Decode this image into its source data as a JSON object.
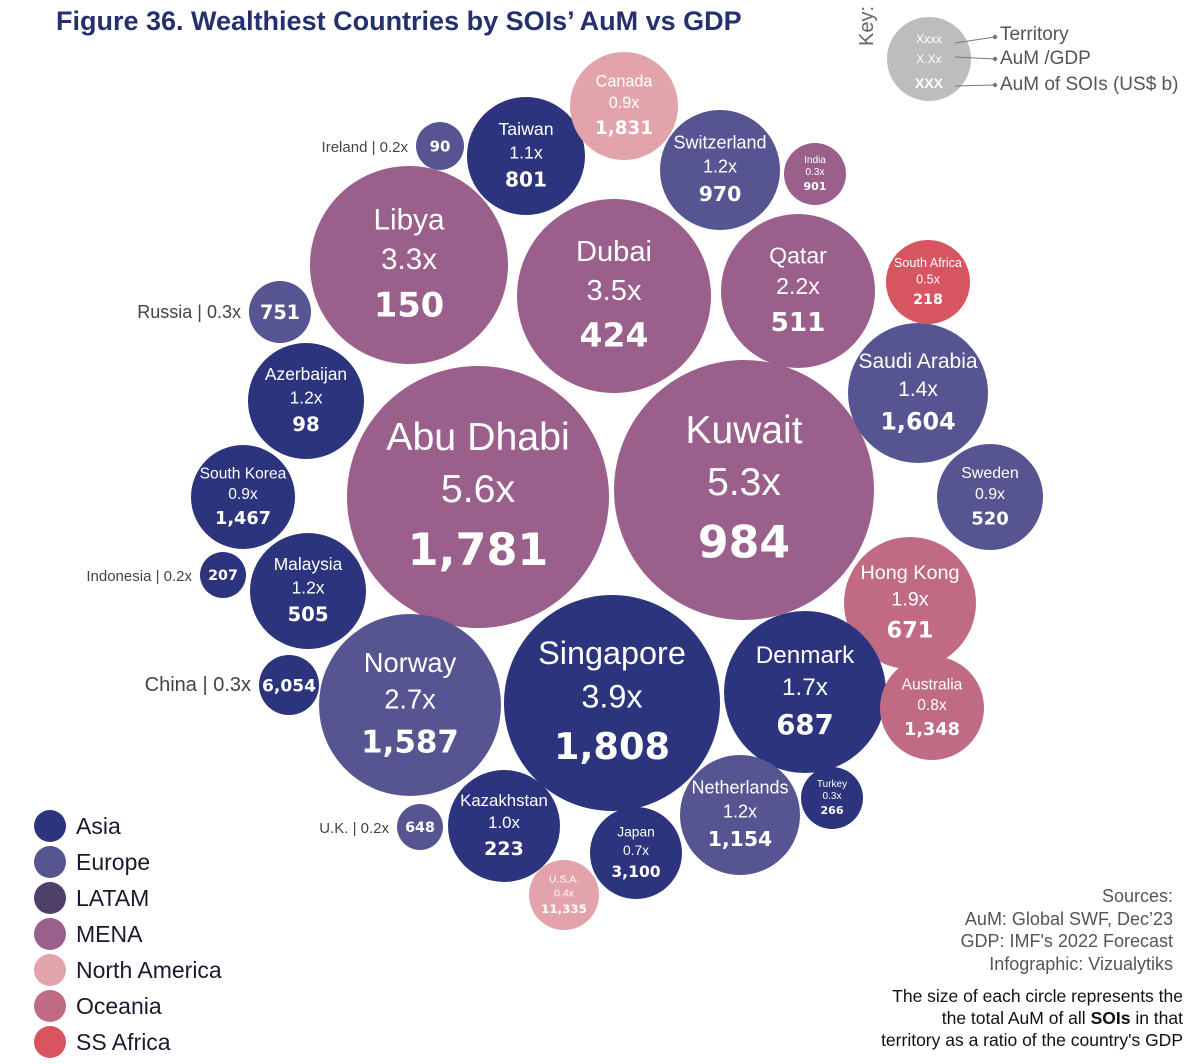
{
  "title": "Figure 36. Wealthiest Countries by SOIs’ AuM vs GDP",
  "key": {
    "heading": "Key:",
    "sample_territory": "Xxxx",
    "sample_ratio": "X.Xx",
    "sample_aum": "XXX",
    "territory_label": "Territory",
    "ratio_label": "AuM /GDP",
    "aum_label": "AuM of SOIs  (US$ b)"
  },
  "colors": {
    "Asia": "#2b347d",
    "Europe": "#565591",
    "LATAM": "#4f3f6b",
    "MENA": "#9b5f8c",
    "North America": "#e3a3ab",
    "Oceania": "#c06a83",
    "SS Africa": "#d65561"
  },
  "legend": [
    "Asia",
    "Europe",
    "LATAM",
    "MENA",
    "North America",
    "Oceania",
    "SS Africa"
  ],
  "sources": {
    "heading": "Sources:",
    "aum": "AuM: Global SWF, Dec’23",
    "gdp": "GDP: IMF's 2022 Forecast",
    "infographic": "Infographic: Vizualytiks"
  },
  "note": {
    "line1": "The size of each circle represents the",
    "line2a": "the total AuM of all ",
    "line2b": "SOIs",
    "line2c": "  in that",
    "line3": "territory as a ratio of the country's GDP"
  },
  "chart_data": {
    "type": "bubble",
    "title": "Figure 36. Wealthiest Countries by SOIs’ AuM vs GDP",
    "size_measure": "AuM / GDP ratio",
    "points": [
      {
        "territory": "Abu Dhabi",
        "ratio": "5.6x",
        "aum": "1,781",
        "region": "MENA"
      },
      {
        "territory": "Kuwait",
        "ratio": "5.3x",
        "aum": "984",
        "region": "MENA"
      },
      {
        "territory": "Singapore",
        "ratio": "3.9x",
        "aum": "1,808",
        "region": "Asia"
      },
      {
        "territory": "Dubai",
        "ratio": "3.5x",
        "aum": "424",
        "region": "MENA"
      },
      {
        "territory": "Libya",
        "ratio": "3.3x",
        "aum": "150",
        "region": "MENA"
      },
      {
        "territory": "Norway",
        "ratio": "2.7x",
        "aum": "1,587",
        "region": "Europe"
      },
      {
        "territory": "Qatar",
        "ratio": "2.2x",
        "aum": "511",
        "region": "MENA"
      },
      {
        "territory": "Hong Kong",
        "ratio": "1.9x",
        "aum": "671",
        "region": "Oceania"
      },
      {
        "territory": "Denmark",
        "ratio": "1.7x",
        "aum": "687",
        "region": "Asia"
      },
      {
        "territory": "Saudi Arabia",
        "ratio": "1.4x",
        "aum": "1,604",
        "region": "Europe"
      },
      {
        "territory": "Switzerland",
        "ratio": "1.2x",
        "aum": "970",
        "region": "Europe"
      },
      {
        "territory": "Netherlands",
        "ratio": "1.2x",
        "aum": "1,154",
        "region": "Europe"
      },
      {
        "territory": "Azerbaijan",
        "ratio": "1.2x",
        "aum": "98",
        "region": "Asia"
      },
      {
        "territory": "Malaysia",
        "ratio": "1.2x",
        "aum": "505",
        "region": "Asia"
      },
      {
        "territory": "Taiwan",
        "ratio": "1.1x",
        "aum": "801",
        "region": "Asia"
      },
      {
        "territory": "Kazakhstan",
        "ratio": "1.0x",
        "aum": "223",
        "region": "Asia"
      },
      {
        "territory": "Canada",
        "ratio": "0.9x",
        "aum": "1,831",
        "region": "North America"
      },
      {
        "territory": "South Korea",
        "ratio": "0.9x",
        "aum": "1,467",
        "region": "Asia"
      },
      {
        "territory": "Sweden",
        "ratio": "0.9x",
        "aum": "520",
        "region": "Europe"
      },
      {
        "territory": "Australia",
        "ratio": "0.8x",
        "aum": "1,348",
        "region": "Oceania"
      },
      {
        "territory": "Japan",
        "ratio": "0.7x",
        "aum": "3,100",
        "region": "Asia"
      },
      {
        "territory": "South Africa",
        "ratio": "0.5x",
        "aum": "218",
        "region": "SS Africa"
      },
      {
        "territory": "U.S.A.",
        "ratio": "0.4x",
        "aum": "11,335",
        "region": "North America"
      },
      {
        "territory": "India",
        "ratio": "0.3x",
        "aum": "901",
        "region": "MENA"
      },
      {
        "territory": "Turkey",
        "ratio": "0.3x",
        "aum": "266",
        "region": "Asia"
      },
      {
        "territory": "Russia",
        "ratio": "0.3x",
        "aum": "751",
        "region": "Europe"
      },
      {
        "territory": "China",
        "ratio": "0.3x",
        "aum": "6,054",
        "region": "Asia"
      },
      {
        "territory": "Ireland",
        "ratio": "0.2x",
        "aum": "90",
        "region": "Europe"
      },
      {
        "territory": "Indonesia",
        "ratio": "0.2x",
        "aum": "207",
        "region": "Asia"
      },
      {
        "territory": "U.K.",
        "ratio": "0.2x",
        "aum": "648",
        "region": "Europe"
      }
    ]
  }
}
